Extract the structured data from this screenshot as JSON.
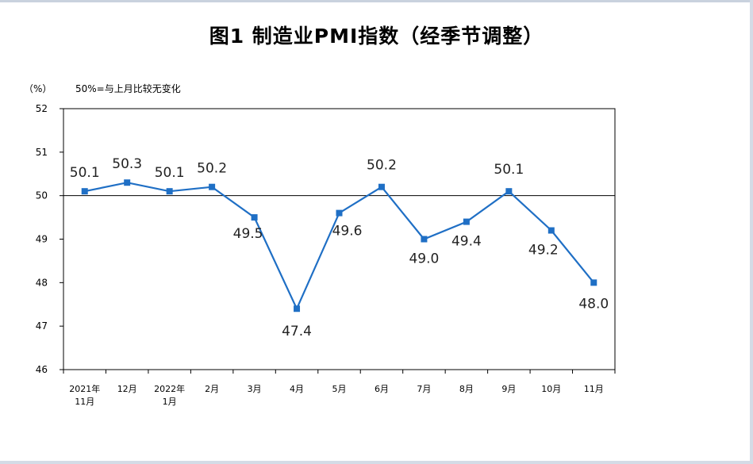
{
  "chart_data": {
    "type": "line",
    "title": "图1 制造业PMI指数（经季节调整）",
    "unit_label": "（%）",
    "reference_note": "50%=与上月比较无变化",
    "reference_value": 50,
    "ylim": [
      46,
      52
    ],
    "yticks": [
      46,
      47,
      48,
      49,
      50,
      51,
      52
    ],
    "grid": false,
    "line_color": "#1f6fc5",
    "categories": [
      [
        "2021年",
        "11月"
      ],
      [
        "12月"
      ],
      [
        "2022年",
        "1月"
      ],
      [
        "2月"
      ],
      [
        "3月"
      ],
      [
        "4月"
      ],
      [
        "5月"
      ],
      [
        "6月"
      ],
      [
        "7月"
      ],
      [
        "8月"
      ],
      [
        "9月"
      ],
      [
        "10月"
      ],
      [
        "11月"
      ]
    ],
    "values": [
      50.1,
      50.3,
      50.1,
      50.2,
      49.5,
      47.4,
      49.6,
      50.2,
      49.0,
      49.4,
      50.1,
      49.2,
      48.0
    ],
    "data_labels": [
      "50.1",
      "50.3",
      "50.1",
      "50.2",
      "49.5",
      "47.4",
      "49.6",
      "50.2",
      "49.0",
      "49.4",
      "50.1",
      "49.2",
      "48.0"
    ]
  }
}
